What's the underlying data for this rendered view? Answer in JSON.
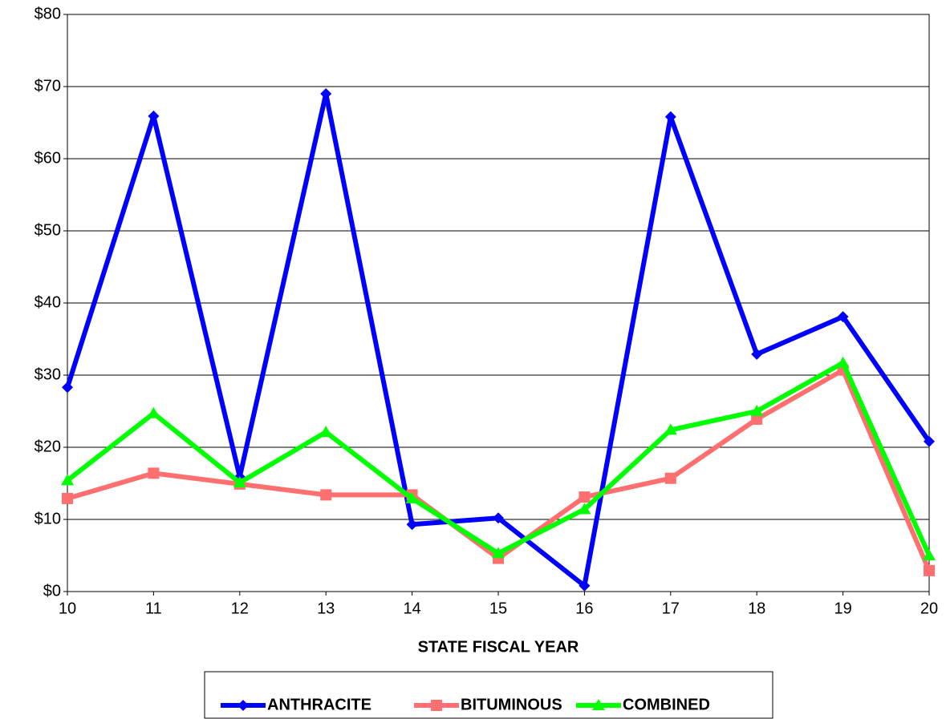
{
  "chart_data": {
    "type": "line",
    "x_label": "STATE FISCAL YEAR",
    "x": [
      10,
      11,
      12,
      13,
      14,
      15,
      16,
      17,
      18,
      19,
      20
    ],
    "xlim": [
      10,
      20
    ],
    "xticks": [
      10,
      11,
      12,
      13,
      14,
      15,
      16,
      17,
      18,
      19,
      20
    ],
    "ylim": [
      0,
      80
    ],
    "yticks": [
      {
        "value": 0,
        "label": "$0"
      },
      {
        "value": 10,
        "label": "$10"
      },
      {
        "value": 20,
        "label": "$20"
      },
      {
        "value": 30,
        "label": "$30"
      },
      {
        "value": 40,
        "label": "$40"
      },
      {
        "value": 50,
        "label": "$50"
      },
      {
        "value": 60,
        "label": "$60"
      },
      {
        "value": 70,
        "label": "$70"
      },
      {
        "value": 80,
        "label": "$80"
      }
    ],
    "grid": true,
    "legend": "bottom",
    "series": [
      {
        "name": "ANTHRACITE",
        "color": "#0000ff",
        "marker": "diamond",
        "values": [
          28.3,
          65.9,
          15.9,
          69,
          9.3,
          10.2,
          0.8,
          65.8,
          32.9,
          38.1,
          20.8
        ]
      },
      {
        "name": "BITUMINOUS",
        "color": "#ff6f6f",
        "marker": "square",
        "values": [
          12.9,
          16.4,
          14.9,
          13.4,
          13.4,
          4.6,
          13.1,
          15.7,
          23.9,
          30.7,
          2.9
        ]
      },
      {
        "name": "COMBINED",
        "color": "#00ff00",
        "marker": "triangle",
        "values": [
          15.4,
          24.7,
          15.1,
          22.1,
          12.9,
          5.3,
          11.4,
          22.4,
          25,
          31.7,
          5.0
        ]
      }
    ]
  }
}
